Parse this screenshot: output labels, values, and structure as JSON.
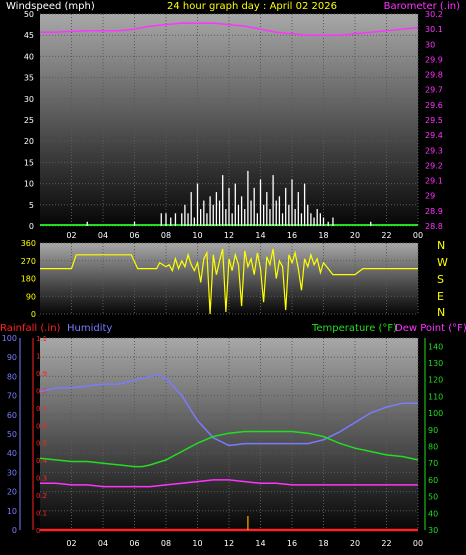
{
  "header": {
    "left_label": "Windspeed (mph)",
    "title": "24 hour graph day : April 02 2026",
    "right_label": "Barometer (.in)"
  },
  "compass": [
    "N",
    "W",
    "S",
    "E",
    "N"
  ],
  "lower_header": {
    "rainfall": "Rainfall (.in)",
    "humidity": "Humidity",
    "temperature": "Temperature (°F)",
    "dewpoint": "Dew Point (°F)"
  },
  "colors": {
    "wind": "#ffffff",
    "barometer": "#ff33ff",
    "direction": "#ffff00",
    "humidity": "#7b7bff",
    "temperature": "#22dd22",
    "dewpoint": "#ff33ff",
    "rainfall": "#ff2222",
    "title": "#ffff00"
  },
  "chart_data": [
    {
      "type": "line",
      "id": "wind-baro",
      "xlabel": "",
      "x_ticks": [
        "02",
        "04",
        "06",
        "08",
        "10",
        "12",
        "14",
        "16",
        "18",
        "20",
        "22",
        "00"
      ],
      "ylabel": "Windspeed (mph)",
      "ylim": [
        0,
        50
      ],
      "y_ticks": [
        0,
        5,
        10,
        15,
        20,
        25,
        30,
        35,
        40,
        45,
        50
      ],
      "y2label": "Barometer (.in)",
      "y2lim": [
        28.8,
        30.2
      ],
      "y2_ticks": [
        "28.8",
        "28.9",
        "29",
        "29.1",
        "29.2",
        "29.3",
        "29.4",
        "29.5",
        "29.6",
        "29.7",
        "29.8",
        "29.9",
        "30",
        "30.1",
        "30.2"
      ],
      "series": [
        {
          "name": "Barometer (.in)",
          "axis": "right",
          "x": [
            0,
            1,
            2,
            3,
            4,
            5,
            6,
            7,
            8,
            9,
            10,
            11,
            12,
            13,
            14,
            15,
            16,
            17,
            18,
            19,
            20,
            21,
            22,
            23,
            24
          ],
          "values": [
            30.08,
            30.08,
            30.085,
            30.09,
            30.09,
            30.09,
            30.1,
            30.12,
            30.13,
            30.14,
            30.14,
            30.14,
            30.13,
            30.12,
            30.1,
            30.08,
            30.07,
            30.06,
            30.06,
            30.06,
            30.07,
            30.08,
            30.09,
            30.1,
            30.11
          ]
        },
        {
          "name": "Windspeed (mph)",
          "axis": "left",
          "style": "spikes",
          "x": [
            3,
            6,
            7.7,
            8,
            8.3,
            8.6,
            9,
            9.2,
            9.4,
            9.6,
            9.8,
            10,
            10.2,
            10.4,
            10.6,
            10.8,
            11,
            11.2,
            11.4,
            11.6,
            11.8,
            12,
            12.2,
            12.4,
            12.6,
            12.8,
            13,
            13.2,
            13.4,
            13.6,
            13.8,
            14,
            14.2,
            14.4,
            14.6,
            14.8,
            15,
            15.2,
            15.4,
            15.6,
            15.8,
            16,
            16.2,
            16.4,
            16.6,
            16.8,
            17,
            17.2,
            17.4,
            17.6,
            17.8,
            18,
            18.3,
            18.6,
            21
          ],
          "values": [
            1,
            1,
            3,
            3,
            2,
            3,
            3,
            5,
            3,
            8,
            2,
            10,
            4,
            6,
            3,
            7,
            5,
            8,
            6,
            12,
            4,
            9,
            3,
            10,
            5,
            7,
            4,
            13,
            6,
            9,
            3,
            11,
            5,
            8,
            4,
            12,
            6,
            7,
            3,
            9,
            5,
            11,
            4,
            8,
            3,
            10,
            5,
            3,
            2,
            4,
            3,
            2,
            1,
            2,
            1
          ]
        }
      ]
    },
    {
      "type": "line",
      "id": "direction",
      "ylim": [
        0,
        360
      ],
      "y_ticks": [
        0,
        90,
        180,
        270,
        360
      ],
      "series": [
        {
          "name": "Wind direction",
          "x": [
            0,
            2,
            2.3,
            5.8,
            6.2,
            7.4,
            7.6,
            8,
            8.2,
            8.4,
            8.6,
            8.8,
            9,
            9.2,
            9.4,
            9.6,
            9.8,
            10,
            10.2,
            10.4,
            10.6,
            10.8,
            11,
            11.2,
            11.4,
            11.6,
            11.8,
            12,
            12.2,
            12.4,
            12.6,
            12.8,
            13,
            13.2,
            13.4,
            13.6,
            13.8,
            14,
            14.2,
            14.4,
            14.6,
            14.8,
            15,
            15.2,
            15.4,
            15.6,
            15.8,
            16,
            16.2,
            16.4,
            16.6,
            16.8,
            17,
            17.2,
            17.4,
            17.6,
            17.8,
            18,
            18.3,
            18.6,
            19,
            20,
            20.5,
            24
          ],
          "values": [
            230,
            230,
            300,
            300,
            230,
            230,
            260,
            240,
            250,
            220,
            280,
            230,
            270,
            240,
            300,
            250,
            220,
            260,
            160,
            280,
            310,
            0,
            300,
            200,
            270,
            330,
            10,
            280,
            220,
            300,
            250,
            40,
            320,
            240,
            280,
            200,
            310,
            230,
            60,
            290,
            250,
            330,
            180,
            270,
            240,
            20,
            300,
            260,
            310,
            230,
            120,
            280,
            240,
            300,
            250,
            280,
            210,
            260,
            230,
            200,
            200,
            200,
            230,
            230
          ]
        }
      ]
    },
    {
      "type": "line",
      "id": "humidity-temp",
      "x_ticks": [
        "02",
        "04",
        "06",
        "08",
        "10",
        "12",
        "14",
        "16",
        "18",
        "20",
        "22",
        "00"
      ],
      "y_left_outer_lim": [
        0,
        100
      ],
      "y_left_outer_ticks": [
        0,
        10,
        20,
        30,
        40,
        50,
        60,
        70,
        80,
        90,
        100
      ],
      "y_left_inner_lim": [
        0,
        1.1
      ],
      "y_left_inner_ticks": [
        "0",
        "0.1",
        "0.2",
        "0.3",
        "0.4",
        "0.5",
        "0.6",
        "0.7",
        "0.8",
        "0.9",
        "1",
        "1.1"
      ],
      "y_right_lim": [
        30,
        145
      ],
      "y_right_ticks": [
        30,
        40,
        50,
        60,
        70,
        80,
        90,
        100,
        110,
        120,
        130,
        140
      ],
      "series": [
        {
          "name": "Humidity",
          "axis": "left-outer",
          "x": [
            0,
            1,
            2,
            3,
            4,
            5,
            6,
            7,
            7.5,
            8,
            9,
            10,
            11,
            12,
            13,
            14,
            15,
            16,
            17,
            18,
            19,
            20,
            21,
            22,
            23,
            24
          ],
          "values": [
            72,
            74,
            74,
            75,
            76,
            76,
            78,
            80,
            81,
            79,
            70,
            57,
            48,
            44,
            45,
            45,
            45,
            45,
            45,
            47,
            51,
            56,
            61,
            64,
            66,
            66
          ]
        },
        {
          "name": "Temperature (°F)",
          "axis": "right",
          "x": [
            0,
            1,
            2,
            3,
            4,
            5,
            6,
            6.5,
            7,
            8,
            9,
            10,
            11,
            12,
            13,
            14,
            15,
            16,
            17,
            18,
            19,
            20,
            21,
            22,
            23,
            24
          ],
          "values": [
            73,
            72,
            71,
            71,
            70,
            69,
            68,
            68,
            69,
            72,
            77,
            82,
            86,
            88,
            89,
            89,
            89,
            89,
            88,
            86,
            82,
            79,
            77,
            75,
            74,
            72
          ]
        },
        {
          "name": "Dew Point (°F)",
          "axis": "right",
          "x": [
            0,
            1,
            2,
            3,
            4,
            5,
            6,
            7,
            8,
            9,
            10,
            11,
            12,
            13,
            14,
            15,
            16,
            17,
            18,
            19,
            20,
            21,
            22,
            23,
            24
          ],
          "values": [
            58,
            58,
            57,
            57,
            56,
            56,
            56,
            56,
            57,
            58,
            59,
            60,
            60,
            59,
            58,
            58,
            57,
            57,
            57,
            57,
            57,
            57,
            57,
            57,
            57
          ]
        },
        {
          "name": "Rainfall (.in)",
          "axis": "left-inner",
          "x": [
            0,
            24
          ],
          "values": [
            0,
            0
          ]
        }
      ],
      "annotations": [
        {
          "type": "tick-bar",
          "x": 13.2,
          "value": 0.08
        }
      ]
    }
  ]
}
